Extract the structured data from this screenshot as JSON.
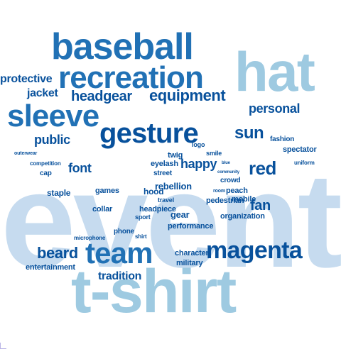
{
  "palette": {
    "faint": "#c6dbef",
    "light": "#9ecae1",
    "mid": "#6baed6",
    "strong": "#4292c6",
    "deep": "#2171b5",
    "navy": "#08519c",
    "ink": "#08306b"
  },
  "words": [
    {
      "text": "event",
      "tone": "faint"
    },
    {
      "text": "t-shirt",
      "tone": "light"
    },
    {
      "text": "hat",
      "tone": "light"
    },
    {
      "text": "baseball",
      "tone": "deep"
    },
    {
      "text": "recreation",
      "tone": "deep"
    },
    {
      "text": "sleeve",
      "tone": "deep"
    },
    {
      "text": "gesture",
      "tone": "navy"
    },
    {
      "text": "team",
      "tone": "deep"
    },
    {
      "text": "magenta",
      "tone": "navy"
    },
    {
      "text": "headgear",
      "tone": "navy"
    },
    {
      "text": "equipment",
      "tone": "navy"
    },
    {
      "text": "red",
      "tone": "navy"
    },
    {
      "text": "personal",
      "tone": "navy"
    },
    {
      "text": "beard",
      "tone": "navy"
    },
    {
      "text": "public",
      "tone": "navy"
    },
    {
      "text": "protective",
      "tone": "navy"
    },
    {
      "text": "jacket",
      "tone": "navy"
    },
    {
      "text": "tradition",
      "tone": "navy"
    },
    {
      "text": "happy",
      "tone": "navy"
    },
    {
      "text": "font",
      "tone": "navy"
    },
    {
      "text": "sun",
      "tone": "navy"
    },
    {
      "text": "fan",
      "tone": "navy"
    },
    {
      "text": "entertainment",
      "tone": "navy"
    },
    {
      "text": "character",
      "tone": "navy"
    },
    {
      "text": "military",
      "tone": "navy"
    },
    {
      "text": "rebellion",
      "tone": "navy"
    },
    {
      "text": "games",
      "tone": "navy"
    },
    {
      "text": "hood",
      "tone": "navy"
    },
    {
      "text": "peach",
      "tone": "navy"
    },
    {
      "text": "gear",
      "tone": "navy"
    },
    {
      "text": "collar",
      "tone": "navy"
    },
    {
      "text": "headpiece",
      "tone": "navy"
    },
    {
      "text": "pedestrian",
      "tone": "navy"
    },
    {
      "text": "organization",
      "tone": "navy"
    },
    {
      "text": "performance",
      "tone": "navy"
    },
    {
      "text": "microphone",
      "tone": "navy"
    },
    {
      "text": "outerwear",
      "tone": "navy"
    },
    {
      "text": "competition",
      "tone": "navy"
    },
    {
      "text": "eyelash",
      "tone": "navy"
    },
    {
      "text": "twig",
      "tone": "navy"
    },
    {
      "text": "staple",
      "tone": "navy"
    },
    {
      "text": "uniform",
      "tone": "navy"
    },
    {
      "text": "community",
      "tone": "navy"
    },
    {
      "text": "room",
      "tone": "navy"
    },
    {
      "text": "mobile",
      "tone": "navy"
    },
    {
      "text": "sport",
      "tone": "navy"
    },
    {
      "text": "travel",
      "tone": "navy"
    },
    {
      "text": "spectator",
      "tone": "navy"
    },
    {
      "text": "shirt",
      "tone": "navy"
    },
    {
      "text": "phone",
      "tone": "navy"
    },
    {
      "text": "smile",
      "tone": "navy"
    },
    {
      "text": "crowd",
      "tone": "navy"
    },
    {
      "text": "fashion",
      "tone": "navy"
    },
    {
      "text": "cap",
      "tone": "navy"
    },
    {
      "text": "logo",
      "tone": "navy"
    },
    {
      "text": "blue",
      "tone": "navy"
    },
    {
      "text": "street",
      "tone": "navy"
    }
  ]
}
